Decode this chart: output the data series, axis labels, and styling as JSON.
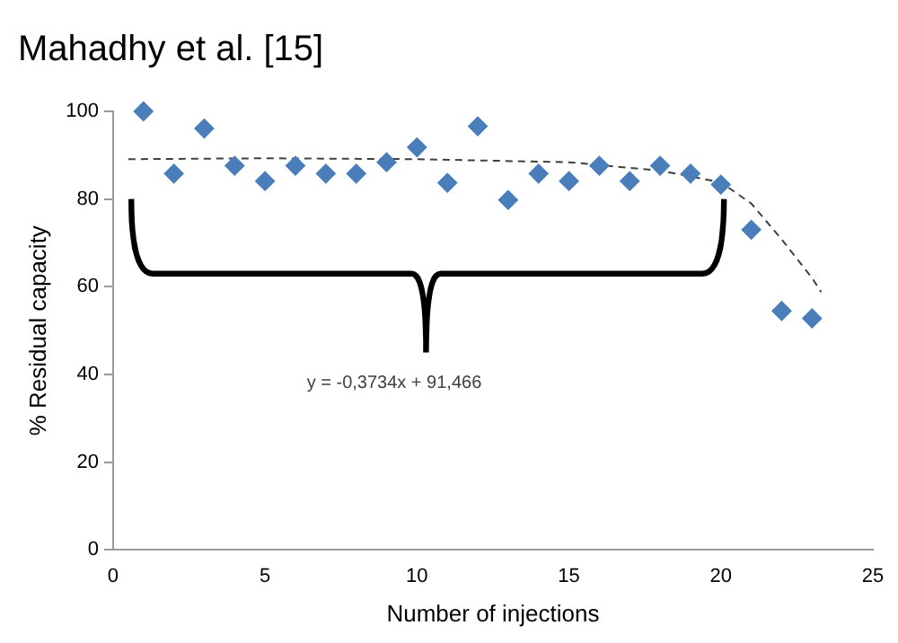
{
  "chart_data": {
    "type": "scatter",
    "title": "Mahadhy et al. [15]",
    "xlabel": "Number of injections",
    "ylabel": "% Residual capacity",
    "annotations": [
      "y = -0,3734x + 91,466"
    ],
    "series": [
      {
        "color": "#4a7ebb",
        "marker": "diamond",
        "x": [
          1,
          2,
          3,
          4,
          5,
          6,
          7,
          8,
          9,
          10,
          11,
          12,
          13,
          14,
          15,
          16,
          17,
          18,
          19,
          20,
          21,
          22,
          23
        ],
        "values": [
          100,
          85.8,
          96.1,
          87.6,
          84.1,
          87.6,
          85.8,
          85.8,
          88.4,
          91.8,
          83.7,
          96.6,
          79.8,
          85.8,
          84.1,
          87.6,
          84.1,
          87.6,
          85.8,
          83.3,
          73,
          54.5,
          52.8
        ]
      },
      {
        "type": "line",
        "color": "#404040",
        "marker": "none",
        "line_style": "dashed",
        "x": [
          0.5,
          5,
          10,
          15,
          18,
          20,
          21,
          22,
          23,
          23.3
        ],
        "values": [
          89.1,
          89.3,
          89.1,
          88.4,
          86.5,
          83.8,
          79,
          70.8,
          62,
          58.8
        ]
      }
    ],
    "xlim": [
      0,
      25
    ],
    "xticks": [
      0,
      5,
      10,
      15,
      20,
      25
    ],
    "ylim": [
      0,
      100
    ],
    "yticks": [
      0,
      20,
      40,
      60,
      80,
      100
    ],
    "grid": false,
    "legend": false
  }
}
